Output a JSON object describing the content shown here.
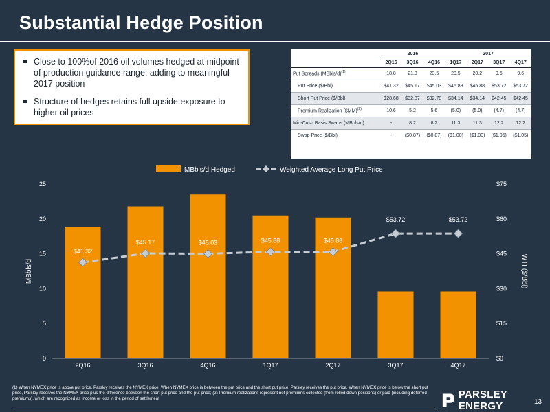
{
  "slide": {
    "title": "Substantial Hedge Position",
    "page_number": "13",
    "logo_text": "PARSLEY ENERGY",
    "footnote": "(1) When NYMEX price is above put price, Parsley receives the NYMEX price. When NYMEX price is between the put price and the short put price, Parsley receives the put price. When NYMEX price is below the short put price, Parsley receives the NYMEX price plus the difference between the short put price and the put price; (2) Premium realizations represent net premiums collected (from rolled down positions) or paid (including deferred premiums), which are recognized as income or loss in the period of settlement"
  },
  "bullets": [
    "Close to 100%of 2016 oil volumes hedged at midpoint of production guidance range; adding to meaningful 2017 position",
    "Structure of hedges retains full upside exposure to higher oil prices"
  ],
  "table": {
    "years": [
      "2016",
      "2017"
    ],
    "quarters": [
      "2Q16",
      "3Q16",
      "4Q16",
      "1Q17",
      "2Q17",
      "3Q17",
      "4Q17"
    ],
    "rows": [
      {
        "label": "Put Spreads (MBbls/d)",
        "sup": "(1)",
        "indent": false,
        "shade": false,
        "values": [
          "18.8",
          "21.8",
          "23.5",
          "20.5",
          "20.2",
          "9.6",
          "9.6"
        ]
      },
      {
        "label": "Put Price ($/Bbl)",
        "sup": "",
        "indent": true,
        "shade": false,
        "values": [
          "$41.32",
          "$45.17",
          "$45.03",
          "$45.88",
          "$45.88",
          "$53.72",
          "$53.72"
        ]
      },
      {
        "label": "Short Put Price ($/Bbl)",
        "sup": "",
        "indent": true,
        "shade": true,
        "values": [
          "$28.68",
          "$32.87",
          "$32.78",
          "$34.14",
          "$34.14",
          "$42.45",
          "$42.45"
        ]
      },
      {
        "label": "Premium Realization ($MM)",
        "sup": "(2)",
        "indent": true,
        "shade": false,
        "values": [
          "10.6",
          "5.2",
          "5.6",
          "(5.0)",
          "(5.0)",
          "(4.7)",
          "(4.7)"
        ]
      },
      {
        "label": "Mid-Cush Basis Swaps (MBbls/d)",
        "sup": "",
        "indent": false,
        "shade": true,
        "values": [
          "-",
          "8.2",
          "8.2",
          "11.3",
          "11.3",
          "12.2",
          "12.2"
        ]
      },
      {
        "label": "Swap Price ($/Bbl)",
        "sup": "",
        "indent": true,
        "shade": false,
        "values": [
          "-",
          "($0.87)",
          "($0.87)",
          "($1.00)",
          "($1.00)",
          "($1.05)",
          "($1.05)"
        ]
      }
    ]
  },
  "chart_data": {
    "type": "bar",
    "categories": [
      "2Q16",
      "3Q16",
      "4Q16",
      "1Q17",
      "2Q17",
      "3Q17",
      "4Q17"
    ],
    "series": [
      {
        "name": "MBbls/d Hedged",
        "type": "bar",
        "axis": "left",
        "values": [
          18.8,
          21.8,
          23.5,
          20.5,
          20.2,
          9.6,
          9.6
        ]
      },
      {
        "name": "Weighted Average Long Put Price",
        "type": "line",
        "axis": "right",
        "values": [
          41.32,
          45.17,
          45.03,
          45.88,
          45.88,
          53.72,
          53.72
        ],
        "labels": [
          "$41.32",
          "$45.17",
          "$45.03",
          "$45.88",
          "$45.88",
          "$53.72",
          "$53.72"
        ]
      }
    ],
    "ylabel": "MBbls/d",
    "y2label": "WTI ($/Bbl)",
    "ylim": [
      0,
      25
    ],
    "y2lim": [
      0,
      75
    ],
    "yticks": [
      "0",
      "5",
      "10",
      "15",
      "20",
      "25"
    ],
    "y2ticks": [
      "$0",
      "$15",
      "$30",
      "$45",
      "$60",
      "$75"
    ],
    "legend_position": "top",
    "grid": false,
    "colors": {
      "bar": "#f39200",
      "line": "#c6ccd2",
      "marker": "#c6ccd2",
      "text": "#ffffff"
    }
  }
}
